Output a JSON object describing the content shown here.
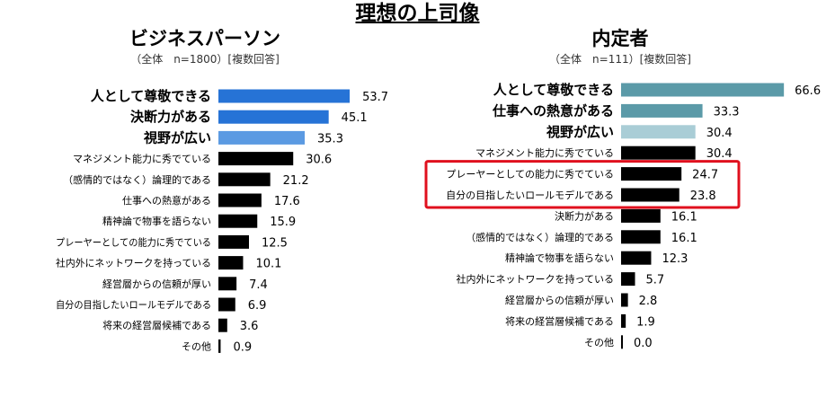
{
  "title": "理想の上司像",
  "chart_data": [
    {
      "type": "bar",
      "orientation": "horizontal",
      "title": "ビジネスパーソン",
      "subtitle": "（全体　n=1800）[複数回答]",
      "categories": [
        "人として尊敬できる",
        "決断力がある",
        "視野が広い",
        "マネジメント能力に秀でている",
        "（感情的ではなく）論理的である",
        "仕事への熱意がある",
        "精神論で物事を語らない",
        "プレーヤーとしての能力に秀でている",
        "社内外にネットワークを持っている",
        "経営層からの信頼が厚い",
        "自分の目指したいロールモデルである",
        "将来の経営層候補である",
        "その他"
      ],
      "values": [
        53.7,
        45.1,
        35.3,
        30.6,
        21.2,
        17.6,
        15.9,
        12.5,
        10.1,
        7.4,
        6.9,
        3.6,
        0.9
      ],
      "value_labels": [
        "53.7",
        "45.1",
        "35.3",
        "30.6",
        "21.2",
        "17.6",
        "15.9",
        "12.5",
        "10.1",
        "7.4",
        "6.9",
        "3.6",
        "0.9"
      ],
      "colors": [
        "#2673d6",
        "#2673d6",
        "#5b9ae2",
        "#000000",
        "#000000",
        "#000000",
        "#000000",
        "#000000",
        "#000000",
        "#000000",
        "#000000",
        "#000000",
        "#000000"
      ],
      "bold_top": 3
    },
    {
      "type": "bar",
      "orientation": "horizontal",
      "title": "内定者",
      "subtitle": "（全体　n=111）[複数回答]",
      "categories": [
        "人として尊敬できる",
        "仕事への熱意がある",
        "視野が広い",
        "マネジメント能力に秀でている",
        "プレーヤーとしての能力に秀でている",
        "自分の目指したいロールモデルである",
        "決断力がある",
        "（感情的ではなく）論理的である",
        "精神論で物事を語らない",
        "社内外にネットワークを持っている",
        "経営層からの信頼が厚い",
        "将来の経営層候補である",
        "その他"
      ],
      "values": [
        66.6,
        33.3,
        30.4,
        30.4,
        24.7,
        23.8,
        16.1,
        16.1,
        12.3,
        5.7,
        2.8,
        1.9,
        0.0
      ],
      "value_labels": [
        "66.6",
        "33.3",
        "30.4",
        "30.4",
        "24.7",
        "23.8",
        "16.1",
        "16.1",
        "12.3",
        "5.7",
        "2.8",
        "1.9",
        "0.0"
      ],
      "colors": [
        "#5b9aa8",
        "#5b9aa8",
        "#a9cdd6",
        "#000000",
        "#000000",
        "#000000",
        "#000000",
        "#000000",
        "#000000",
        "#000000",
        "#000000",
        "#000000",
        "#000000"
      ],
      "bold_top": 3,
      "highlight_rows": [
        4,
        5
      ],
      "highlight_color": "#e0101e"
    }
  ]
}
